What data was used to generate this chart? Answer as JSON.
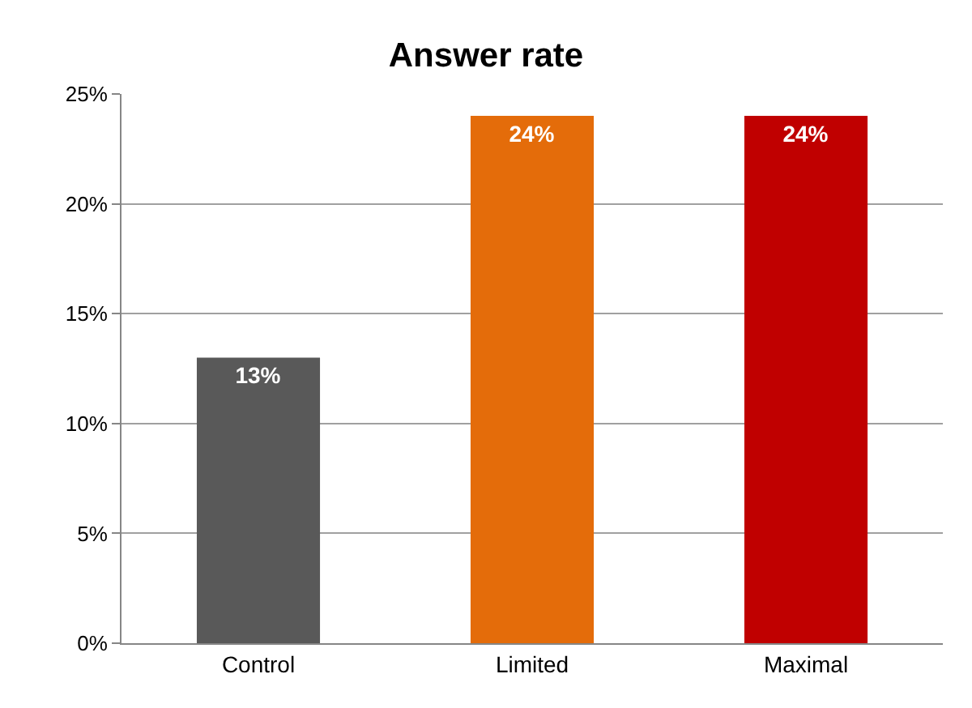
{
  "chart_data": {
    "type": "bar",
    "title": "Answer rate",
    "categories": [
      "Control",
      "Limited",
      "Maximal"
    ],
    "values": [
      13,
      24,
      24
    ],
    "colors": [
      "#595959",
      "#e46c0a",
      "#c00000"
    ],
    "value_labels": [
      "13%",
      "24%",
      "24%"
    ],
    "ylim": [
      0,
      25
    ],
    "yticks": [
      {
        "value": 0,
        "label": "0%"
      },
      {
        "value": 5,
        "label": "5%"
      },
      {
        "value": 10,
        "label": "10%"
      },
      {
        "value": 15,
        "label": "15%"
      },
      {
        "value": 20,
        "label": "20%"
      },
      {
        "value": 25,
        "label": "25%"
      }
    ],
    "grid": "y",
    "legend": false
  }
}
